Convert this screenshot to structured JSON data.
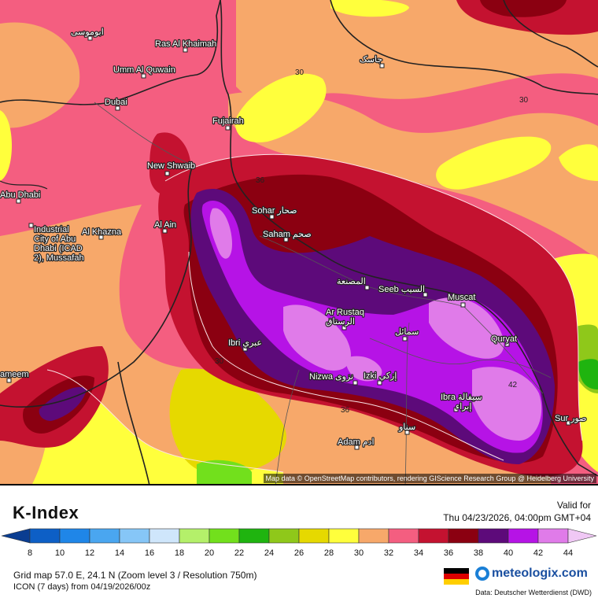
{
  "map": {
    "attribution": "Map data © OpenStreetMap contributors, rendering GIScience Research Group @ Heidelberg University",
    "contour_labels": [
      "30",
      "36",
      "30",
      "30",
      "36",
      "42"
    ],
    "places": [
      {
        "name": "ابوموسی"
      },
      {
        "name": "Ras Al Khaimah"
      },
      {
        "name": "Umm Al Quwain"
      },
      {
        "name": "Dubai"
      },
      {
        "name": "Fujairah"
      },
      {
        "name": "New Shwaib"
      },
      {
        "name": "Abu Dhabi"
      },
      {
        "name": "Industrial City of Abu Dhabi (ICAD 2), Mussafah"
      },
      {
        "name": "Al Khazna"
      },
      {
        "name": "Al Ain"
      },
      {
        "name": "Sohar صحار"
      },
      {
        "name": "Saham صحم"
      },
      {
        "name": "المصنعة"
      },
      {
        "name": "Seeb السيب"
      },
      {
        "name": "Muscat"
      },
      {
        "name": "Ar Rustaq الرستاق"
      },
      {
        "name": "سمائل"
      },
      {
        "name": "Quryat"
      },
      {
        "name": "Ibri عبري"
      },
      {
        "name": "Nizwa نزوى"
      },
      {
        "name": "Izki إزكي"
      },
      {
        "name": "Ibra سيفالة إبراء"
      },
      {
        "name": "Sur صور"
      },
      {
        "name": "سناو"
      },
      {
        "name": "Adam ادم"
      },
      {
        "name": "ameem"
      },
      {
        "name": "جاسک"
      }
    ]
  },
  "legend": {
    "title": "K-Index",
    "valid_label": "Valid for",
    "valid_time": "Thu 04/23/2026, 04:00pm GMT+04",
    "ticks": [
      "8",
      "10",
      "12",
      "14",
      "16",
      "18",
      "20",
      "22",
      "24",
      "26",
      "28",
      "30",
      "32",
      "34",
      "36",
      "38",
      "40",
      "42",
      "44"
    ],
    "colors": [
      "#0a3d91",
      "#0d5fc6",
      "#1f86e8",
      "#4aa6f0",
      "#86c6f7",
      "#cfe6fb",
      "#b4f06a",
      "#72e01c",
      "#1fb40f",
      "#8fc81a",
      "#e6d900",
      "#ffff3c",
      "#f7a86a",
      "#f45e80",
      "#c41230",
      "#8b0011",
      "#5d0a7a",
      "#b613e6",
      "#e07be9",
      "#f0c8f5"
    ]
  },
  "info": {
    "grid_line": "Grid map 57.0 E, 24.1 N (Zoom level 3 / Resolution 750m)",
    "model_line": "ICON (7 days) from 04/19/2026/00z",
    "source": "Data: Deutscher Wetterdienst (DWD)"
  },
  "brand": {
    "name": "meteologix.com"
  }
}
